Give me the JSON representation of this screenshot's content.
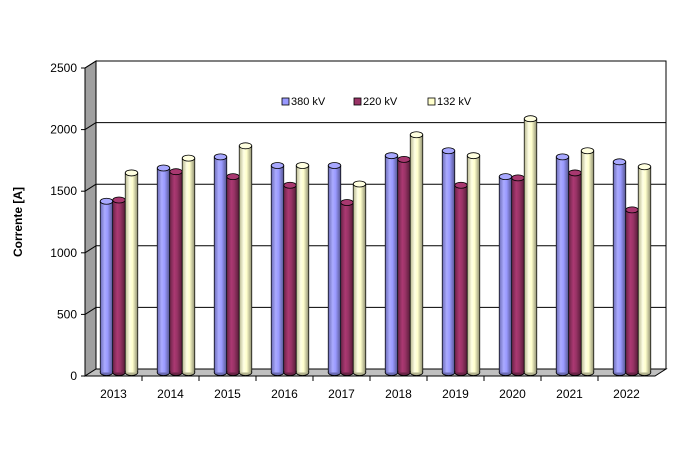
{
  "chart_data": {
    "type": "bar",
    "title": "",
    "xlabel": "",
    "ylabel": "Corrente [A]",
    "ylim": [
      0,
      2500
    ],
    "yticks": [
      0,
      500,
      1000,
      1500,
      2000,
      2500
    ],
    "grid": true,
    "legend_position": "top-center",
    "categories": [
      "2013",
      "2014",
      "2015",
      "2016",
      "2017",
      "2018",
      "2019",
      "2020",
      "2021",
      "2022"
    ],
    "series": [
      {
        "name": "380 kV",
        "color": "#9999ff",
        "values": [
          1390,
          1660,
          1750,
          1680,
          1680,
          1760,
          1800,
          1590,
          1750,
          1710
        ]
      },
      {
        "name": "220 kV",
        "color": "#993366",
        "values": [
          1400,
          1630,
          1590,
          1520,
          1380,
          1730,
          1520,
          1580,
          1620,
          1320
        ]
      },
      {
        "name": "132 kV",
        "color": "#ffffcc",
        "values": [
          1620,
          1740,
          1840,
          1680,
          1530,
          1930,
          1760,
          2060,
          1800,
          1670
        ]
      }
    ]
  }
}
